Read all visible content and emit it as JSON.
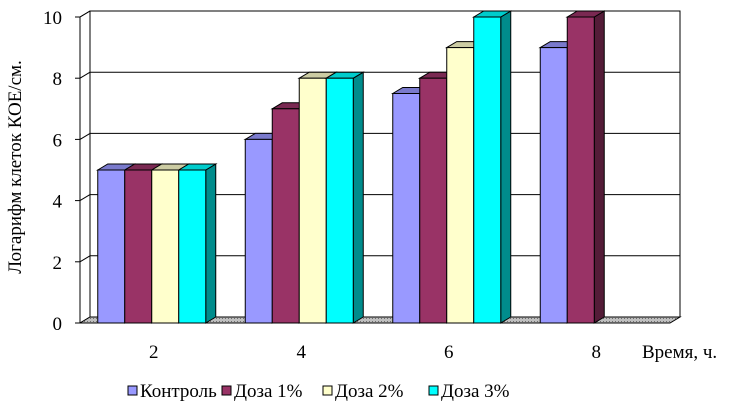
{
  "chart_data": {
    "type": "bar",
    "title": "",
    "xlabel": "Время, ч.",
    "ylabel": "Логарифм клеток КОЕ/см.",
    "categories": [
      "2",
      "4",
      "6",
      "8"
    ],
    "yticks": [
      "0",
      "2",
      "4",
      "6",
      "8",
      "10"
    ],
    "ylim": [
      0,
      10
    ],
    "grid": true,
    "legend_position": "bottom",
    "series": [
      {
        "name": "Контроль",
        "color": "#9999ff",
        "values": [
          5,
          6,
          7.5,
          9
        ]
      },
      {
        "name": "Доза 1%",
        "color": "#993366",
        "values": [
          5,
          7,
          8,
          10
        ]
      },
      {
        "name": "Доза 2%",
        "color": "#ffffcc",
        "values": [
          5,
          8,
          9,
          null
        ]
      },
      {
        "name": "Доза 3%",
        "color": "#00ffff",
        "values": [
          5,
          8,
          10,
          null
        ]
      }
    ]
  }
}
